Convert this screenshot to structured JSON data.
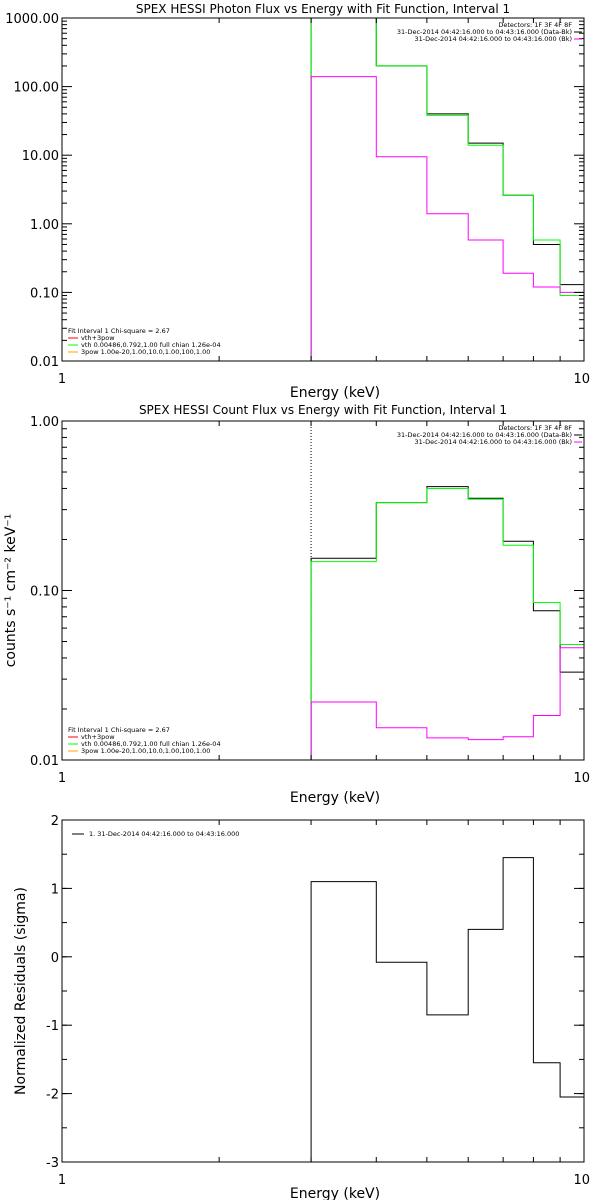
{
  "chart_data": [
    {
      "type": "line",
      "title": "SPEX HESSI Photon Flux vs Energy with Fit Function, Interval 1",
      "xlabel": "Energy (keV)",
      "ylabel": "",
      "xscale": "log",
      "yscale": "log",
      "xlim": [
        1,
        10
      ],
      "ylim": [
        0.01,
        1000
      ],
      "xticks": [
        "1",
        "10"
      ],
      "yticks": [
        "1000.00",
        "100.00",
        "10.00",
        "1.00",
        "0.10",
        "0.01"
      ],
      "ytick_values": [
        1000,
        100,
        10,
        1,
        0.1,
        0.01
      ],
      "legend_top_right": [
        {
          "text": "Detectors: 1F 3F 4F 8F",
          "color": ""
        },
        {
          "text": "31-Dec-2014 04:42:16.000 to 04:43:16.000 (Data-Bk)",
          "color": "#000000"
        },
        {
          "text": "31-Dec-2014 04:42:16.000 to 04:43:16.000 (Bk)",
          "color": "#ff00ff"
        }
      ],
      "legend_bottom_left": [
        {
          "text": "Fit Interval 1   Chi-square = 2.67",
          "color": ""
        },
        {
          "text": "vth+3pow",
          "color": "#ff0000"
        },
        {
          "text": "vth 0.00486,0.792,1.00  full chian 1.26e-04",
          "color": "#00ff00"
        },
        {
          "text": "3pow 1.00e-20,1.00,10.0,1.00,100,1.00",
          "color": "#ffa500"
        }
      ],
      "vline_x": 3,
      "x_edges": [
        3,
        4,
        5,
        6,
        7,
        8,
        9,
        10
      ],
      "series": [
        {
          "color": "#000000",
          "values": [
            1000,
            200,
            40,
            15,
            2.6,
            0.5,
            0.13
          ]
        },
        {
          "color": "#00ff00",
          "values": [
            1000,
            200,
            38,
            14,
            2.6,
            0.58,
            0.09
          ]
        },
        {
          "color": "#ff00ff",
          "values": [
            140,
            9.5,
            1.4,
            0.58,
            0.19,
            0.12,
            0.1
          ]
        }
      ]
    },
    {
      "type": "line",
      "title": "SPEX HESSI Count Flux vs Energy with Fit Function, Interval 1",
      "xlabel": "Energy (keV)",
      "ylabel": "counts s⁻¹ cm⁻² keV⁻¹",
      "xscale": "log",
      "yscale": "log",
      "xlim": [
        1,
        10
      ],
      "ylim": [
        0.01,
        1
      ],
      "xticks": [
        "1",
        "10"
      ],
      "yticks": [
        "1.00",
        "0.10",
        "0.01"
      ],
      "ytick_values": [
        1,
        0.1,
        0.01
      ],
      "legend_top_right": [
        {
          "text": "Detectors: 1F 3F 4F 8F",
          "color": ""
        },
        {
          "text": "31-Dec-2014 04:42:16.000 to 04:43:16.000 (Data-Bk)",
          "color": "#000000"
        },
        {
          "text": "31-Dec-2014 04:42:16.000 to 04:43:16.000 (Bk)",
          "color": "#ff00ff"
        }
      ],
      "legend_bottom_left": [
        {
          "text": "Fit Interval 1   Chi-square = 2.67",
          "color": ""
        },
        {
          "text": "vth+3pow",
          "color": "#ff0000"
        },
        {
          "text": "vth 0.00486,0.792,1.00  full chian 1.26e-04",
          "color": "#00ff00"
        },
        {
          "text": "3pow 1.00e-20,1.00,10.0,1.00,100,1.00",
          "color": "#ffa500"
        }
      ],
      "vline_x": 3,
      "x_edges": [
        3,
        4,
        5,
        6,
        7,
        8,
        9,
        10
      ],
      "series": [
        {
          "color": "#000000",
          "values": [
            0.155,
            0.33,
            0.41,
            0.35,
            0.195,
            0.076,
            0.033
          ]
        },
        {
          "color": "#00ff00",
          "values": [
            0.148,
            0.33,
            0.4,
            0.345,
            0.185,
            0.085,
            0.048
          ]
        },
        {
          "color": "#ff00ff",
          "values": [
            0.022,
            0.0155,
            0.0135,
            0.0132,
            0.0137,
            0.0183,
            0.046
          ]
        }
      ]
    },
    {
      "type": "line",
      "title": "",
      "xlabel": "Energy (keV)",
      "ylabel": "Normalized Residuals (sigma)",
      "xscale": "log",
      "yscale": "linear",
      "xlim": [
        1,
        10
      ],
      "ylim": [
        -3,
        2
      ],
      "xticks": [
        "1",
        "10"
      ],
      "yticks": [
        "2",
        "1",
        "0",
        "-1",
        "-2",
        "-3"
      ],
      "ytick_values": [
        2,
        1,
        0,
        -1,
        -2,
        -3
      ],
      "legend_top_left": [
        {
          "text": "1. 31-Dec-2014 04:42:16.000 to 04:43:16.000",
          "color": "#000000"
        }
      ],
      "x_edges": [
        3,
        4,
        5,
        6,
        7,
        8,
        9,
        10
      ],
      "series": [
        {
          "color": "#000000",
          "values": [
            1.1,
            -0.08,
            -0.85,
            0.4,
            1.45,
            -1.55,
            -2.05
          ]
        }
      ]
    }
  ]
}
